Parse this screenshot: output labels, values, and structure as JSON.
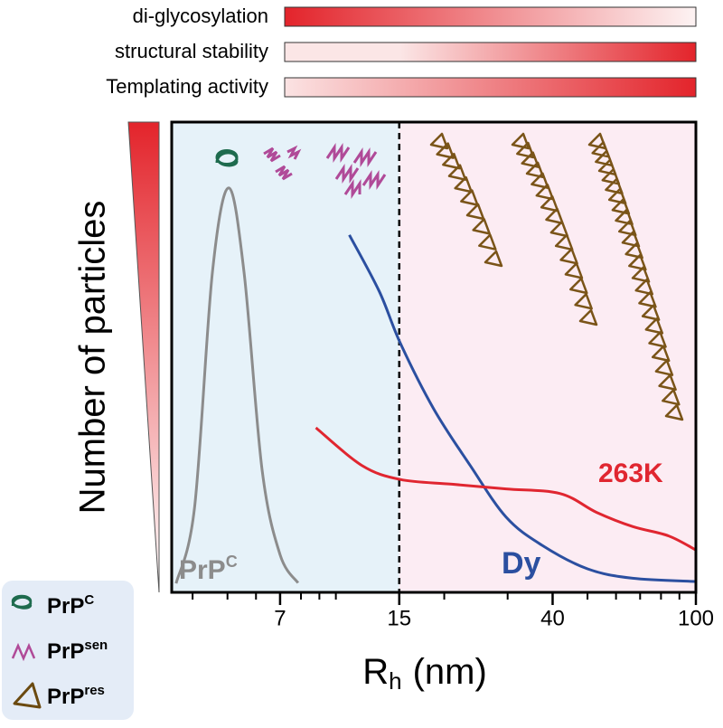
{
  "chart_data": {
    "type": "line",
    "gradient_bars": [
      {
        "label": "di-glycosylation",
        "from": "#e3242b",
        "to": "#fdf3f3",
        "start": 0
      },
      {
        "label": "structural stability",
        "from": "#fbe6e6",
        "to": "#e3242b",
        "start": 0.28
      },
      {
        "label": "Templating activity",
        "from": "#fbe3e3",
        "to": "#e3242b",
        "start": 0
      }
    ],
    "y_label": "Number of particles",
    "x_label": {
      "main": "R",
      "sub": "h",
      "unit": "(nm)"
    },
    "x_log": true,
    "xlim": [
      3.5,
      100
    ],
    "xticks": [
      7,
      15,
      40,
      100
    ],
    "xminorticks": [
      4,
      5,
      6,
      8,
      9,
      10,
      20,
      30,
      50,
      60,
      70,
      80,
      90
    ],
    "ylim": [
      0,
      100
    ],
    "divider": 15,
    "series": [
      {
        "name": "PrP",
        "name_sup": "C",
        "color": "#8c8c8c",
        "x": [
          3.6,
          4.05,
          4.54,
          5.04,
          5.56,
          6.24,
          7.0,
          7.85
        ],
        "values": [
          1.9,
          18,
          68,
          86,
          68,
          26,
          8,
          2
        ]
      },
      {
        "name": "Dy",
        "color": "#2b4fa0",
        "x": [
          10.9,
          13.2,
          15.1,
          18.7,
          23.6,
          29.7,
          37.4,
          50,
          66.7,
          100
        ],
        "values": [
          76,
          64,
          53,
          39,
          27,
          16,
          10,
          5,
          3,
          2.3
        ]
      },
      {
        "name": "263K",
        "color": "#e02630",
        "x": [
          8.8,
          11.8,
          15.1,
          21,
          29.7,
          42,
          53,
          66.7,
          84,
          100
        ],
        "values": [
          35,
          27,
          24,
          23,
          22,
          21,
          17,
          14,
          12,
          9
        ]
      }
    ],
    "legend": [
      {
        "base": "PrP",
        "sup": "C"
      },
      {
        "base": "PrP",
        "sup": "sen"
      },
      {
        "base": "PrP",
        "sup": "res"
      }
    ]
  }
}
